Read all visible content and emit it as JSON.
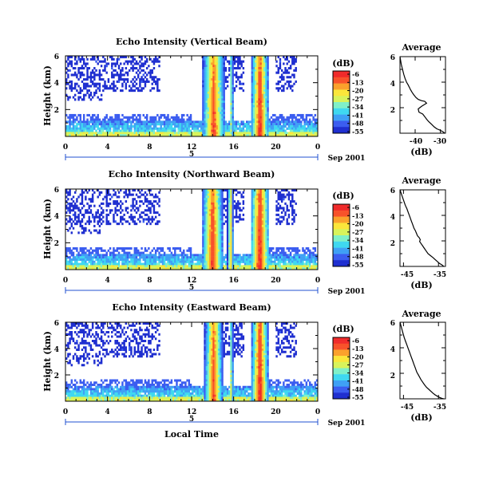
{
  "colormap": [
    "#1f2fd0",
    "#3b5df0",
    "#3fa0f5",
    "#3fd8f0",
    "#7ff0c8",
    "#d8f35a",
    "#fbe63a",
    "#fba12c",
    "#f8522a",
    "#f02a2a"
  ],
  "date_label": "Sep 2001",
  "colorbar_unit": "(dB)",
  "xlabel_shared": "Local Time",
  "chart_data": [
    {
      "type": "heatmap",
      "title": "Echo Intensity (Vertical Beam)",
      "ylabel": "Height (km)",
      "xlabel": "Local Time",
      "x_ticks": [
        "0",
        "4",
        "8",
        "12",
        "16",
        "20",
        "0"
      ],
      "y_ticks": [
        "6",
        "4",
        "2"
      ],
      "day_label": "5",
      "date_label": "Sep 2001",
      "x_range_hours": [
        0,
        24
      ],
      "y_range_km": [
        0,
        6
      ],
      "colorbar": {
        "label": "(dB)",
        "ticks": [
          "-6",
          "-13",
          "-20",
          "-27",
          "-34",
          "-41",
          "-48",
          "-55"
        ]
      },
      "echo_levels_db": {
        "boundary_layer": -37,
        "upper_sparse": -52,
        "columns": [
          {
            "start_hour": 13.0,
            "end_hour": 15.2,
            "peak_db": -10
          },
          {
            "start_hour": 15.6,
            "end_hour": 16.0,
            "peak_db": -20
          },
          {
            "start_hour": 17.7,
            "end_hour": 19.3,
            "peak_db": -6
          }
        ]
      }
    },
    {
      "type": "line",
      "title": "Average",
      "xlabel": "(dB)",
      "x_ticks": [
        "-40",
        "-30"
      ],
      "y_ticks": [
        "6",
        "4",
        "2"
      ],
      "xlim": [
        -46,
        -28
      ],
      "ylim": [
        0,
        6
      ],
      "x": [
        -46.0,
        -45.5,
        -45.0,
        -44.5,
        -44.0,
        -43.4,
        -42.8,
        -42.3,
        -41.8,
        -41.2,
        -40.5,
        -39.7,
        -38.8,
        -37.5,
        -36.2,
        -35.5,
        -36.3,
        -37.5,
        -38.8,
        -38.5,
        -37.0,
        -36.2,
        -35.5,
        -34.6,
        -33.5,
        -32.5,
        -31.5,
        -30.3,
        -29.0,
        -28.3
      ],
      "y": [
        6.0,
        5.4,
        5.0,
        4.6,
        4.3,
        4.0,
        3.8,
        3.6,
        3.4,
        3.2,
        3.0,
        2.8,
        2.65,
        2.55,
        2.5,
        2.35,
        2.25,
        2.1,
        1.9,
        1.65,
        1.5,
        1.3,
        1.1,
        0.9,
        0.7,
        0.5,
        0.35,
        0.25,
        0.12,
        0.0
      ]
    },
    {
      "type": "heatmap",
      "title": "Echo Intensity (Northward Beam)",
      "ylabel": "Height (km)",
      "xlabel": "Local Time",
      "x_ticks": [
        "0",
        "4",
        "8",
        "12",
        "16",
        "20",
        "0"
      ],
      "y_ticks": [
        "6",
        "4",
        "2"
      ],
      "day_label": "5",
      "date_label": "Sep 2001",
      "x_range_hours": [
        0,
        24
      ],
      "y_range_km": [
        0,
        6
      ],
      "colorbar": {
        "label": "(dB)",
        "ticks": [
          "-6",
          "-13",
          "-20",
          "-27",
          "-34",
          "-41",
          "-48",
          "-55"
        ]
      },
      "echo_levels_db": {
        "boundary_layer": -37,
        "upper_sparse": -52,
        "columns": [
          {
            "start_hour": 13.0,
            "end_hour": 15.0,
            "peak_db": -8
          },
          {
            "start_hour": 15.4,
            "end_hour": 16.0,
            "peak_db": -15
          },
          {
            "start_hour": 17.6,
            "end_hour": 19.4,
            "peak_db": -6
          }
        ]
      }
    },
    {
      "type": "line",
      "title": "Average",
      "xlabel": "(dB)",
      "x_ticks": [
        "-45",
        "-35"
      ],
      "y_ticks": [
        "6",
        "4",
        "2"
      ],
      "xlim": [
        -46,
        -33
      ],
      "ylim": [
        0,
        6
      ],
      "x": [
        -46.0,
        -45.5,
        -45.0,
        -44.5,
        -44.0,
        -43.6,
        -43.2,
        -42.8,
        -42.4,
        -42.0,
        -41.6,
        -41.3,
        -41.0,
        -40.5,
        -40.2,
        -40.4,
        -40.0,
        -39.5,
        -39.0,
        -38.5,
        -38.0,
        -37.3,
        -36.6,
        -36.0,
        -35.4,
        -34.8,
        -34.0,
        -33.5
      ],
      "y": [
        6.0,
        5.6,
        5.2,
        4.8,
        4.5,
        4.2,
        3.9,
        3.6,
        3.3,
        3.0,
        2.8,
        2.6,
        2.4,
        2.25,
        2.1,
        1.95,
        1.8,
        1.6,
        1.4,
        1.2,
        1.0,
        0.85,
        0.7,
        0.55,
        0.4,
        0.25,
        0.12,
        0.0
      ]
    },
    {
      "type": "heatmap",
      "title": "Echo Intensity (Eastward Beam)",
      "ylabel": "Height (km)",
      "xlabel": "Local Time",
      "x_ticks": [
        "0",
        "4",
        "8",
        "12",
        "16",
        "20",
        "0"
      ],
      "y_ticks": [
        "6",
        "4",
        "2"
      ],
      "day_label": "5",
      "date_label": "Sep 2001",
      "x_range_hours": [
        0,
        24
      ],
      "y_range_km": [
        0,
        6
      ],
      "colorbar": {
        "label": "(dB)",
        "ticks": [
          "-6",
          "-13",
          "-20",
          "-27",
          "-34",
          "-41",
          "-48",
          "-55"
        ]
      },
      "echo_levels_db": {
        "boundary_layer": -37,
        "upper_sparse": -52,
        "columns": [
          {
            "start_hour": 13.2,
            "end_hour": 15.0,
            "peak_db": -10
          },
          {
            "start_hour": 15.6,
            "end_hour": 16.0,
            "peak_db": -20
          },
          {
            "start_hour": 17.7,
            "end_hour": 19.3,
            "peak_db": -6
          }
        ]
      }
    },
    {
      "type": "line",
      "title": "Average",
      "xlabel": "(dB)",
      "x_ticks": [
        "-45",
        "-35"
      ],
      "y_ticks": [
        "6",
        "4",
        "2"
      ],
      "xlim": [
        -46,
        -33
      ],
      "ylim": [
        0,
        6
      ],
      "x": [
        -46.0,
        -45.6,
        -45.2,
        -44.8,
        -44.4,
        -44.0,
        -43.6,
        -43.2,
        -42.8,
        -42.4,
        -42.0,
        -41.6,
        -41.2,
        -40.8,
        -40.4,
        -40.0,
        -39.5,
        -39.0,
        -38.4,
        -37.8,
        -37.2,
        -36.6,
        -36.0,
        -35.3,
        -34.6,
        -34.0,
        -33.5
      ],
      "y": [
        6.0,
        5.6,
        5.2,
        4.8,
        4.5,
        4.2,
        3.9,
        3.6,
        3.3,
        3.0,
        2.7,
        2.4,
        2.1,
        1.9,
        1.7,
        1.5,
        1.3,
        1.1,
        0.9,
        0.75,
        0.6,
        0.45,
        0.32,
        0.2,
        0.1,
        0.04,
        0.0
      ]
    }
  ]
}
